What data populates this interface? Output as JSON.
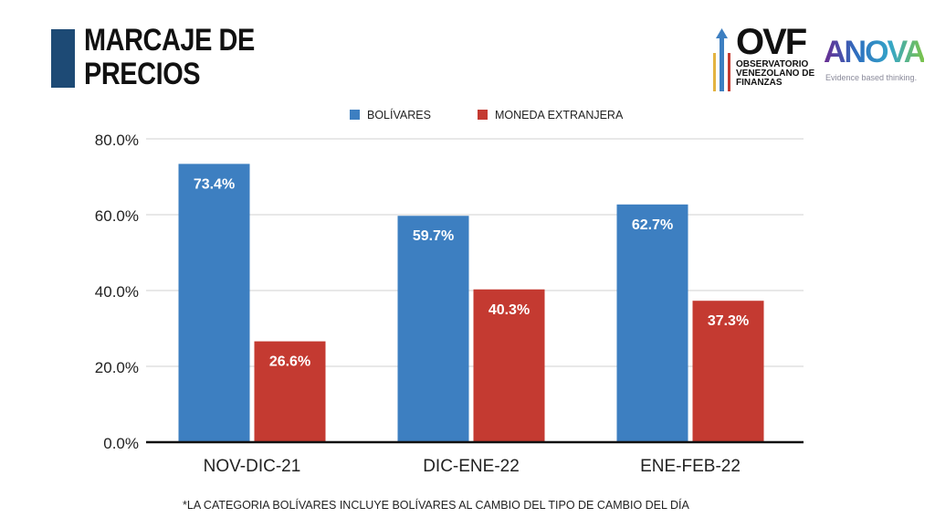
{
  "header": {
    "title_line1": "MARCAJE DE",
    "title_line2": "PRECIOS"
  },
  "logos": {
    "ovf": {
      "name": "OVF",
      "line1": "OBSERVATORIO",
      "line2": "VENEZOLANO DE",
      "line3": "FINANZAS"
    },
    "anova": {
      "name": "ANOVA",
      "tagline": "Evidence based thinking."
    }
  },
  "footnote": "*LA CATEGORIA BOLÍVARES INCLUYE BOLÍVARES AL CAMBIO DEL TIPO DE CAMBIO DEL DÍA",
  "colors": {
    "bolivares": "#3d7fc1",
    "extranjera": "#c43a31"
  },
  "chart_data": {
    "type": "bar",
    "title": "MARCAJE DE PRECIOS",
    "xlabel": "",
    "ylabel": "",
    "categories": [
      "NOV-DIC-21",
      "DIC-ENE-22",
      "ENE-FEB-22"
    ],
    "series": [
      {
        "name": "BOLÍVARES",
        "values": [
          73.4,
          59.7,
          62.7
        ]
      },
      {
        "name": "MONEDA EXTRANJERA",
        "values": [
          26.6,
          40.3,
          37.3
        ]
      }
    ],
    "ylim": [
      0,
      80
    ],
    "yticks": [
      0,
      20,
      40,
      60,
      80
    ],
    "ytick_labels": [
      "0.0%",
      "20.0%",
      "40.0%",
      "60.0%",
      "80.0%"
    ],
    "grid": true,
    "legend": "top-center"
  }
}
